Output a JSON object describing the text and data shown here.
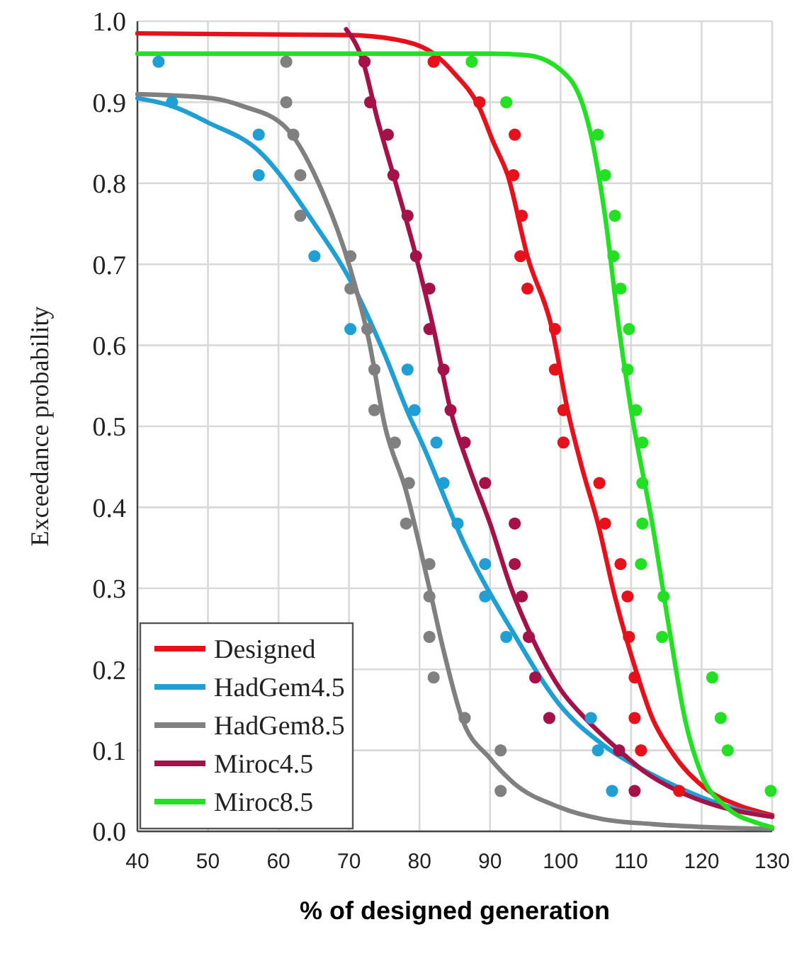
{
  "chart_data": {
    "type": "line",
    "xlabel": "% of designed generation",
    "ylabel": "Exceedance probability",
    "xlim": [
      40,
      130
    ],
    "xticks": [
      40,
      50,
      60,
      70,
      80,
      90,
      100,
      110,
      120,
      130
    ],
    "ylim": [
      0,
      1
    ],
    "yticks": [
      {
        "value": 0,
        "label": "0.0"
      },
      {
        "value": 0.1,
        "label": "0.1"
      },
      {
        "value": 0.2,
        "label": "0.2"
      },
      {
        "value": 0.3,
        "label": "0.3"
      },
      {
        "value": 0.4,
        "label": "0.4"
      },
      {
        "value": 0.5,
        "label": "0.5"
      },
      {
        "value": 0.6,
        "label": "0.6"
      },
      {
        "value": 0.7,
        "label": "0.7"
      },
      {
        "value": 0.8,
        "label": "0.8"
      },
      {
        "value": 0.9,
        "label": "0.9"
      },
      {
        "value": 1,
        "label": "1.0"
      }
    ],
    "grid": true,
    "legend": "bottom left",
    "line_style": "solid",
    "series": [
      {
        "name": "Designed",
        "color": "#e8101a",
        "type": "line",
        "x": [
          40,
          70,
          78,
          82,
          85,
          88.4,
          90.5,
          92.5,
          95.3,
          98.8,
          101,
          103,
          105.3,
          107.7,
          111,
          113,
          115.6,
          121,
          125,
          130
        ],
        "values": [
          0.985,
          0.983,
          0.975,
          0.96,
          0.935,
          0.895,
          0.85,
          0.81,
          0.71,
          0.62,
          0.52,
          0.45,
          0.38,
          0.29,
          0.19,
          0.14,
          0.1,
          0.05,
          0.033,
          0.02
        ]
      },
      {
        "name": "HadGem4.5",
        "color": "#1f9fd4",
        "type": "line",
        "x": [
          40,
          45,
          50,
          57.2,
          65.1,
          70.2,
          75,
          78.7,
          80.1,
          86.6,
          93.3,
          99.8,
          106.3,
          113,
          120,
          126,
          130
        ],
        "values": [
          0.905,
          0.895,
          0.875,
          0.84,
          0.75,
          0.68,
          0.59,
          0.51,
          0.484,
          0.35,
          0.245,
          0.157,
          0.105,
          0.07,
          0.042,
          0.025,
          0.018
        ]
      },
      {
        "name": "HadGem8.5",
        "color": "#808080",
        "type": "line",
        "x": [
          40,
          50.5,
          55,
          60.9,
          66.2,
          70.2,
          72.8,
          75.1,
          78.1,
          81.4,
          83.5,
          86,
          90,
          93.3,
          99.8,
          106,
          113,
          130
        ],
        "values": [
          0.91,
          0.905,
          0.895,
          0.87,
          0.79,
          0.694,
          0.607,
          0.5,
          0.42,
          0.3,
          0.22,
          0.14,
          0.09,
          0.06,
          0.03,
          0.015,
          0.009,
          0.003
        ]
      },
      {
        "name": "Miroc4.5",
        "color": "#a5124a",
        "type": "line",
        "x": [
          69.6,
          72,
          74,
          76.3,
          79.5,
          82,
          84.4,
          87,
          90,
          93,
          95.9,
          100,
          104,
          108.3,
          112,
          116.6,
          122,
          130
        ],
        "values": [
          0.99,
          0.95,
          0.88,
          0.81,
          0.71,
          0.62,
          0.52,
          0.45,
          0.38,
          0.3,
          0.24,
          0.175,
          0.135,
          0.1,
          0.073,
          0.05,
          0.032,
          0.018
        ]
      },
      {
        "name": "Miroc8.5",
        "color": "#22e022",
        "type": "line",
        "x": [
          40,
          90,
          95.3,
          101.2,
          104.3,
          106.3,
          108.3,
          110,
          113,
          115.6,
          117.6,
          120,
          123.5,
          128,
          130
        ],
        "values": [
          0.96,
          0.96,
          0.958,
          0.93,
          0.86,
          0.76,
          0.62,
          0.52,
          0.38,
          0.24,
          0.14,
          0.07,
          0.03,
          0.01,
          0.005
        ]
      },
      {
        "color": "#e8101a",
        "type": "scatter",
        "marker": "circle",
        "x": [
          82,
          88.5,
          93.5,
          93.3,
          94.5,
          94.3,
          95.3,
          99.2,
          99.2,
          100.4,
          100.4,
          105.5,
          106.3,
          108.5,
          109.5,
          109.7,
          110.5,
          110.5,
          111.4,
          116.8
        ],
        "values": [
          0.95,
          0.9,
          0.86,
          0.81,
          0.76,
          0.71,
          0.67,
          0.62,
          0.57,
          0.52,
          0.48,
          0.43,
          0.38,
          0.33,
          0.29,
          0.24,
          0.19,
          0.14,
          0.1,
          0.05
        ]
      },
      {
        "color": "#1f9fd4",
        "type": "scatter",
        "marker": "circle",
        "x": [
          43,
          44.9,
          57.2,
          57.2,
          65.1,
          70.2,
          78.3,
          79.3,
          82.4,
          83.4,
          85.4,
          89.3,
          89.3,
          92.3,
          104.3,
          105.3,
          107.3
        ],
        "values": [
          0.95,
          0.9,
          0.86,
          0.81,
          0.71,
          0.62,
          0.57,
          0.52,
          0.48,
          0.43,
          0.38,
          0.33,
          0.29,
          0.24,
          0.14,
          0.1,
          0.05
        ]
      },
      {
        "color": "#808080",
        "type": "scatter",
        "marker": "circle",
        "x": [
          61.1,
          61.1,
          62.1,
          63.1,
          63.1,
          70.2,
          70.2,
          72.6,
          73.6,
          73.6,
          76.5,
          78.5,
          78.1,
          81.4,
          81.4,
          81.4,
          82,
          86.4,
          91.5,
          91.5
        ],
        "values": [
          0.95,
          0.9,
          0.86,
          0.81,
          0.76,
          0.71,
          0.67,
          0.62,
          0.57,
          0.52,
          0.48,
          0.43,
          0.38,
          0.33,
          0.29,
          0.24,
          0.19,
          0.14,
          0.1,
          0.05
        ]
      },
      {
        "color": "#a5124a",
        "type": "scatter",
        "marker": "circle",
        "x": [
          72.2,
          73,
          75.5,
          76.3,
          78.3,
          79.5,
          81.4,
          81.4,
          83.4,
          84.4,
          86.4,
          89.3,
          93.5,
          93.5,
          94.5,
          95.5,
          96.4,
          98.4,
          108.3,
          110.5
        ],
        "values": [
          0.95,
          0.9,
          0.86,
          0.81,
          0.76,
          0.71,
          0.67,
          0.62,
          0.57,
          0.52,
          0.48,
          0.43,
          0.38,
          0.33,
          0.29,
          0.24,
          0.19,
          0.14,
          0.1,
          0.05
        ]
      },
      {
        "color": "#22e022",
        "type": "scatter",
        "marker": "circle",
        "x": [
          87.4,
          92.3,
          105.3,
          106.3,
          107.7,
          107.5,
          108.5,
          109.7,
          109.5,
          110.7,
          111.6,
          111.6,
          111.6,
          111.4,
          114.6,
          114.4,
          121.5,
          122.7,
          123.7,
          129.8
        ],
        "values": [
          0.95,
          0.9,
          0.86,
          0.81,
          0.76,
          0.71,
          0.67,
          0.62,
          0.57,
          0.52,
          0.48,
          0.43,
          0.38,
          0.33,
          0.29,
          0.24,
          0.19,
          0.14,
          0.1,
          0.05
        ]
      }
    ]
  }
}
